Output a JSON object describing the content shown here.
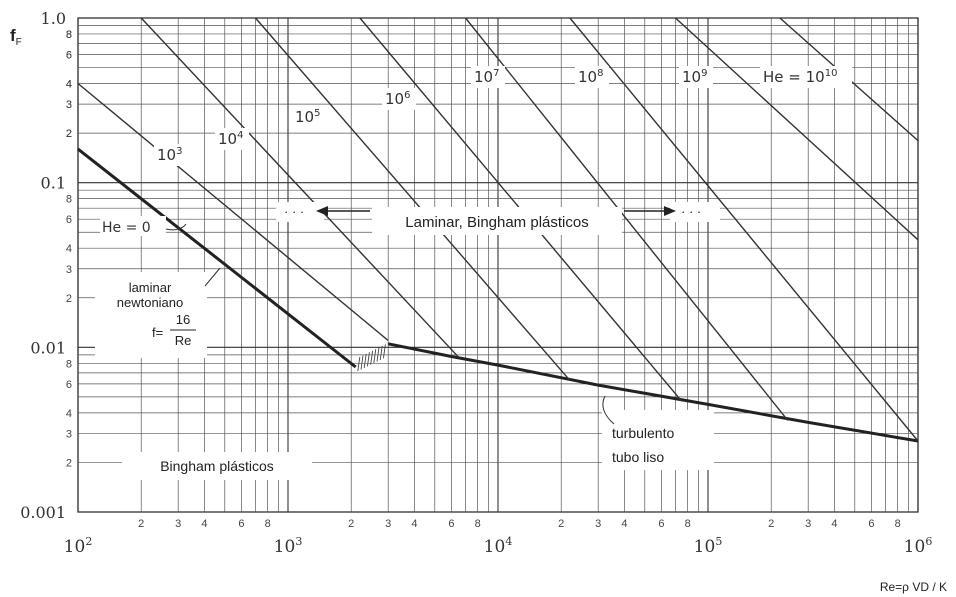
{
  "chart_data": {
    "type": "line",
    "xscale": "log",
    "yscale": "log",
    "xlim": [
      100,
      1000000
    ],
    "ylim": [
      0.001,
      1.0
    ],
    "grid": true,
    "ylabel_main": "f",
    "ylabel_sub": "F",
    "xlabel": "Re=ρ VD / K",
    "x_major_ticks": [
      {
        "base": "10",
        "exp": "2"
      },
      {
        "base": "10",
        "exp": "3"
      },
      {
        "base": "10",
        "exp": "4"
      },
      {
        "base": "10",
        "exp": "5"
      },
      {
        "base": "10",
        "exp": "6"
      }
    ],
    "x_minor_tick_labels": [
      "2",
      "3",
      "4",
      "6",
      "8"
    ],
    "y_major_ticks": [
      "1.0",
      "0.1",
      "0.01",
      "0.001"
    ],
    "y_minor_tick_labels": [
      "2",
      "3",
      "4",
      "6",
      "8"
    ],
    "series": [
      {
        "name": "laminar newtoniano",
        "x": [
          100,
          2100
        ],
        "y": [
          0.16,
          0.0076
        ]
      },
      {
        "name": "turbulento tubo liso",
        "x": [
          3000,
          6000,
          10000,
          30000,
          100000,
          300000,
          1000000
        ],
        "y": [
          0.0105,
          0.0088,
          0.0078,
          0.0059,
          0.0045,
          0.0035,
          0.0027
        ]
      },
      {
        "name": "10³",
        "x": [
          100,
          3000
        ],
        "y": [
          0.4,
          0.011
        ]
      },
      {
        "name": "10⁴",
        "x": [
          200,
          6500
        ],
        "y": [
          1.0,
          0.0087
        ]
      },
      {
        "name": "10⁵",
        "x": [
          700,
          22000
        ],
        "y": [
          1.0,
          0.0063
        ]
      },
      {
        "name": "10⁶",
        "x": [
          2200,
          75000
        ],
        "y": [
          1.0,
          0.0047
        ]
      },
      {
        "name": "10⁷",
        "x": [
          7000,
          240000
        ],
        "y": [
          1.0,
          0.0036
        ]
      },
      {
        "name": "10⁸",
        "x": [
          22000,
          1000000
        ],
        "y": [
          1.0,
          0.0027
        ]
      },
      {
        "name": "10⁹",
        "x": [
          70000,
          1000000
        ],
        "y": [
          1.0,
          0.045
        ]
      },
      {
        "name": "He = 10¹⁰",
        "x": [
          220000,
          1000000
        ],
        "y": [
          1.0,
          0.18
        ]
      }
    ],
    "annotations": {
      "laminar_bingham": "Laminar, Bingham plásticos",
      "dots_left": "· · ·",
      "dots_right": "· · ·",
      "he_zero": "He = 0",
      "laminar_line1": "laminar",
      "laminar_line2": "newtoniano",
      "formula_prefix": "f=",
      "formula_num": "16",
      "formula_den": "Re",
      "bingham": "Bingham plásticos",
      "turbulent_line1": "turbulento",
      "turbulent_line2": "tubo liso",
      "he_labels": [
        {
          "base": "10",
          "exp": "3"
        },
        {
          "base": "10",
          "exp": "4"
        },
        {
          "base": "10",
          "exp": "5"
        },
        {
          "base": "10",
          "exp": "6"
        },
        {
          "base": "10",
          "exp": "7"
        },
        {
          "base": "10",
          "exp": "8"
        },
        {
          "base": "10",
          "exp": "9"
        },
        {
          "prefix": "He = ",
          "base": "10",
          "exp": "10"
        }
      ]
    }
  }
}
